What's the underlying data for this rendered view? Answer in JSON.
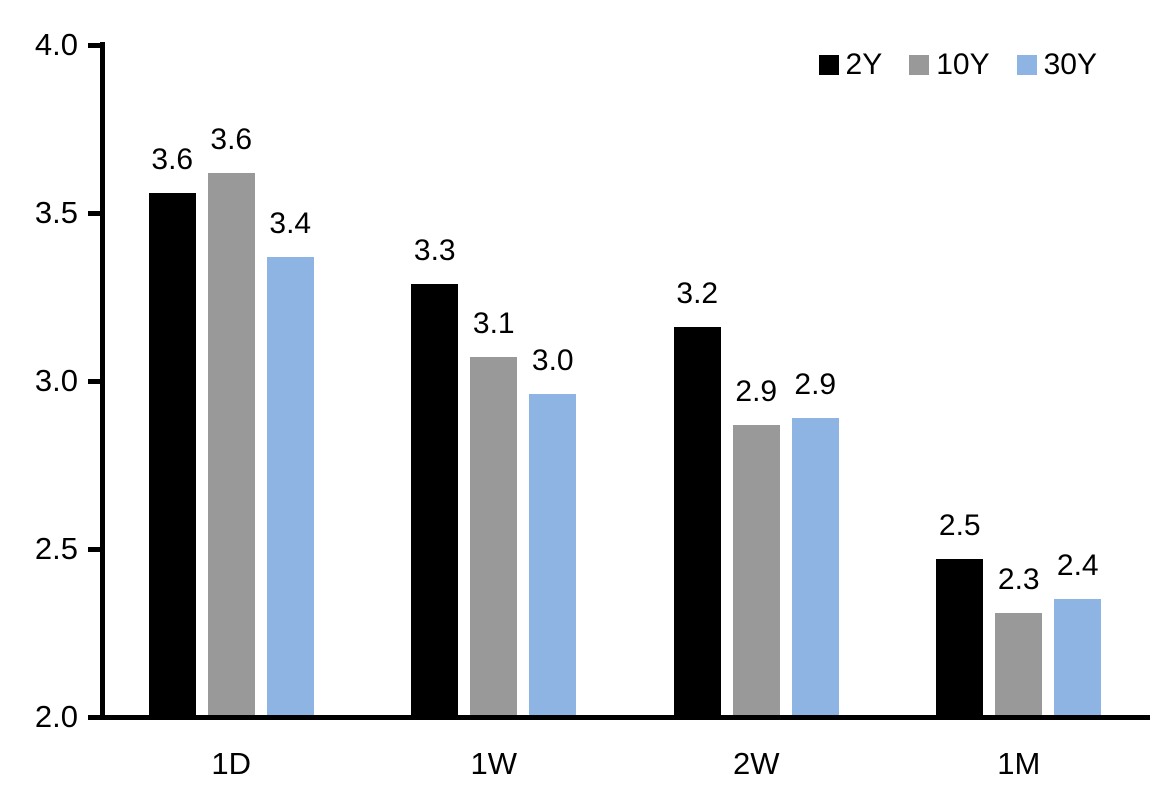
{
  "chart": {
    "background_color": "#ffffff",
    "axis_color": "#000000",
    "text_color": "#000000"
  },
  "chart_data": {
    "type": "bar",
    "title": "",
    "xlabel": "",
    "ylabel": "",
    "categories": [
      "1D",
      "1W",
      "2W",
      "1M"
    ],
    "series": [
      {
        "name": "2Y",
        "color": "#000000",
        "values": [
          3.56,
          3.29,
          3.16,
          2.47
        ],
        "labels": [
          "3.6",
          "3.3",
          "3.2",
          "2.5"
        ]
      },
      {
        "name": "10Y",
        "color": "#999999",
        "values": [
          3.62,
          3.07,
          2.87,
          2.31
        ],
        "labels": [
          "3.6",
          "3.1",
          "2.9",
          "2.3"
        ]
      },
      {
        "name": "30Y",
        "color": "#8DB4E2",
        "values": [
          3.37,
          2.96,
          2.89,
          2.35
        ],
        "labels": [
          "3.4",
          "3.0",
          "2.9",
          "2.4"
        ]
      }
    ],
    "ylim": [
      2.0,
      4.0
    ],
    "y_ticks": [
      {
        "label": "4.0",
        "value": 4.0
      },
      {
        "label": "3.5",
        "value": 3.5
      },
      {
        "label": "3.0",
        "value": 3.0
      },
      {
        "label": "2.5",
        "value": 2.5
      },
      {
        "label": "2.0",
        "value": 2.0
      }
    ],
    "legend": {
      "position": "top-right",
      "entries": [
        "2Y",
        "10Y",
        "30Y"
      ]
    },
    "grid": false,
    "data_labels_shown": true
  }
}
